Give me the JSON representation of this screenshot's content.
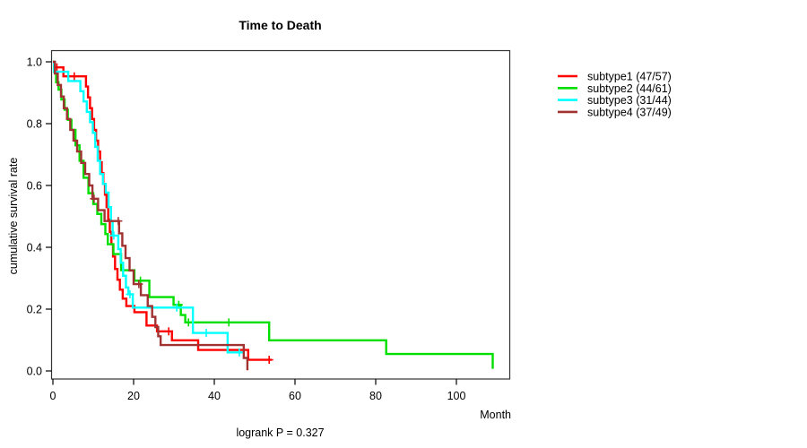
{
  "chart_data": {
    "type": "line",
    "variant": "kaplan-meier-step-curves",
    "title": "Time to Death",
    "xlabel": "Month",
    "ylabel": "cumulative survival rate",
    "caption": "logrank P = 0.327",
    "grid": false,
    "legend_position": "outside-top-right",
    "x_axis": {
      "ticks": [
        0,
        20,
        40,
        60,
        80,
        100
      ],
      "range": [
        0,
        113
      ]
    },
    "y_axis": {
      "ticks": [
        "0.0",
        "0.2",
        "0.4",
        "0.6",
        "0.8",
        "1.0"
      ],
      "range": [
        0,
        1
      ]
    },
    "series": [
      {
        "name": "subtype1",
        "label": "subtype1 (47/57)",
        "events": "47/57",
        "color": "#FF0000",
        "points": [
          [
            0,
            1.0
          ],
          [
            0.4,
            0.982
          ],
          [
            2.6,
            0.953
          ],
          [
            8.2,
            0.92
          ],
          [
            8.7,
            0.885
          ],
          [
            9.2,
            0.85
          ],
          [
            9.7,
            0.815
          ],
          [
            10.2,
            0.78
          ],
          [
            10.7,
            0.745
          ],
          [
            11.2,
            0.71
          ],
          [
            11.7,
            0.675
          ],
          [
            12.1,
            0.64
          ],
          [
            12.5,
            0.605
          ],
          [
            12.9,
            0.57
          ],
          [
            13.3,
            0.53
          ],
          [
            13.7,
            0.49
          ],
          [
            14.1,
            0.45
          ],
          [
            14.5,
            0.41
          ],
          [
            14.9,
            0.37
          ],
          [
            15.4,
            0.33
          ],
          [
            16.0,
            0.295
          ],
          [
            16.6,
            0.263
          ],
          [
            17.3,
            0.234
          ],
          [
            18.2,
            0.21
          ],
          [
            20.2,
            0.19
          ],
          [
            23.2,
            0.147
          ],
          [
            25.8,
            0.128
          ],
          [
            29.5,
            0.099
          ],
          [
            36.0,
            0.068
          ],
          [
            48.4,
            0.036
          ],
          [
            54.2,
            0.036
          ]
        ],
        "censors": [
          [
            1.0,
            0.982
          ],
          [
            5.3,
            0.953
          ],
          [
            28.7,
            0.128
          ],
          [
            53.6,
            0.036
          ]
        ]
      },
      {
        "name": "subtype2",
        "label": "subtype2 (44/61)",
        "events": "44/61",
        "color": "#00DF00",
        "points": [
          [
            0,
            1.0
          ],
          [
            0.3,
            0.967
          ],
          [
            0.8,
            0.934
          ],
          [
            1.4,
            0.91
          ],
          [
            2.1,
            0.878
          ],
          [
            2.9,
            0.845
          ],
          [
            3.7,
            0.812
          ],
          [
            4.6,
            0.78
          ],
          [
            5.6,
            0.73
          ],
          [
            6.6,
            0.68
          ],
          [
            7.6,
            0.625
          ],
          [
            8.8,
            0.575
          ],
          [
            10.0,
            0.54
          ],
          [
            11.0,
            0.508
          ],
          [
            12.0,
            0.475
          ],
          [
            13.0,
            0.443
          ],
          [
            13.6,
            0.41
          ],
          [
            15.0,
            0.378
          ],
          [
            16.9,
            0.326
          ],
          [
            20.2,
            0.292
          ],
          [
            23.9,
            0.239
          ],
          [
            29.9,
            0.214
          ],
          [
            31.7,
            0.181
          ],
          [
            32.8,
            0.157
          ],
          [
            53.6,
            0.099
          ],
          [
            82.6,
            0.055
          ],
          [
            109.0,
            0.007
          ]
        ],
        "censors": [
          [
            21.7,
            0.292
          ],
          [
            31.2,
            0.214
          ],
          [
            33.6,
            0.157
          ],
          [
            43.6,
            0.157
          ]
        ]
      },
      {
        "name": "subtype3",
        "label": "subtype3 (31/44)",
        "events": "31/44",
        "color": "#00FFFF",
        "points": [
          [
            0,
            1.0
          ],
          [
            0.3,
            0.968
          ],
          [
            3.8,
            0.938
          ],
          [
            6.8,
            0.905
          ],
          [
            7.6,
            0.872
          ],
          [
            8.4,
            0.838
          ],
          [
            9.2,
            0.805
          ],
          [
            9.9,
            0.77
          ],
          [
            10.5,
            0.725
          ],
          [
            11.1,
            0.68
          ],
          [
            11.7,
            0.637
          ],
          [
            12.4,
            0.605
          ],
          [
            13.1,
            0.577
          ],
          [
            13.8,
            0.53
          ],
          [
            14.4,
            0.485
          ],
          [
            14.8,
            0.438
          ],
          [
            16.2,
            0.394
          ],
          [
            16.8,
            0.35
          ],
          [
            17.4,
            0.308
          ],
          [
            18.1,
            0.27
          ],
          [
            18.7,
            0.248
          ],
          [
            19.8,
            0.205
          ],
          [
            34.7,
            0.123
          ],
          [
            43.3,
            0.06
          ],
          [
            47.0,
            0.06
          ]
        ],
        "censors": [
          [
            15.1,
            0.438
          ],
          [
            19.1,
            0.248
          ],
          [
            30.7,
            0.205
          ],
          [
            38.0,
            0.123
          ],
          [
            46.2,
            0.06
          ]
        ]
      },
      {
        "name": "subtype4",
        "label": "subtype4 (37/49)",
        "events": "37/49",
        "color": "#A03232",
        "points": [
          [
            0,
            1.0
          ],
          [
            0.5,
            0.962
          ],
          [
            1.2,
            0.925
          ],
          [
            2.0,
            0.888
          ],
          [
            2.7,
            0.85
          ],
          [
            3.5,
            0.815
          ],
          [
            4.3,
            0.78
          ],
          [
            5.1,
            0.745
          ],
          [
            6.0,
            0.71
          ],
          [
            7.0,
            0.673
          ],
          [
            8.0,
            0.637
          ],
          [
            9.0,
            0.6
          ],
          [
            9.8,
            0.557
          ],
          [
            11.2,
            0.52
          ],
          [
            12.8,
            0.485
          ],
          [
            16.4,
            0.445
          ],
          [
            17.2,
            0.405
          ],
          [
            18.0,
            0.365
          ],
          [
            19.0,
            0.325
          ],
          [
            20.0,
            0.281
          ],
          [
            21.8,
            0.245
          ],
          [
            23.5,
            0.21
          ],
          [
            24.6,
            0.175
          ],
          [
            25.4,
            0.142
          ],
          [
            26.1,
            0.112
          ],
          [
            26.7,
            0.084
          ],
          [
            47.3,
            0.042
          ],
          [
            48.2,
            0.002
          ]
        ],
        "censors": [
          [
            10.2,
            0.557
          ],
          [
            16.2,
            0.485
          ],
          [
            21.3,
            0.281
          ]
        ]
      }
    ]
  }
}
